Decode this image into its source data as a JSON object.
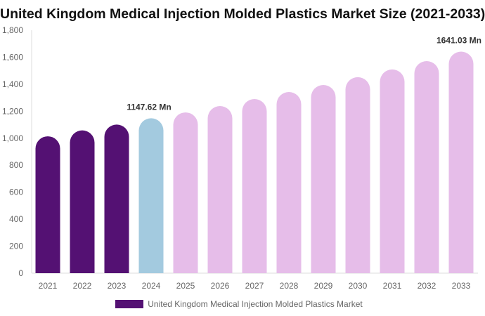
{
  "chart_data": {
    "type": "bar",
    "title": "United Kingdom Medical Injection Molded Plastics Market Size (2021-2033)",
    "categories": [
      "2021",
      "2022",
      "2023",
      "2024",
      "2025",
      "2026",
      "2027",
      "2028",
      "2029",
      "2030",
      "2031",
      "2032",
      "2033"
    ],
    "series": [
      {
        "name": "United Kingdom Medical Injection Molded Plastics Market",
        "values": [
          1014,
          1058,
          1101,
          1147.62,
          1191,
          1238,
          1290,
          1342,
          1394,
          1452,
          1509,
          1571,
          1641.03
        ]
      }
    ],
    "data_labels": [
      {
        "category": "2024",
        "text": "1147.62 Mn"
      },
      {
        "category": "2033",
        "text": "1641.03 Mn"
      }
    ],
    "ylim": [
      0,
      1800
    ],
    "yticks": [
      "0",
      "200",
      "400",
      "600",
      "800",
      "1,000",
      "1,200",
      "1,400",
      "1,600",
      "1,800"
    ],
    "grid": false,
    "legend_position": "bottom",
    "colors": {
      "historical": "#541173",
      "base_year": "#a3cadf",
      "forecast": "#e6bde9"
    }
  }
}
